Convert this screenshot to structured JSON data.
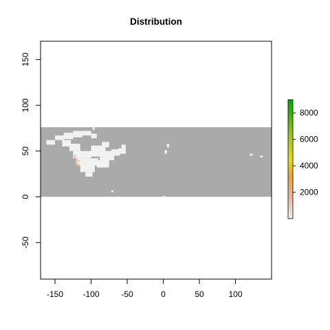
{
  "chart_data": {
    "type": "heatmap",
    "title": "Distribution",
    "xlabel": "",
    "ylabel": "",
    "xlim": [
      -170,
      150
    ],
    "ylim": [
      -90,
      170
    ],
    "x_ticks": [
      {
        "value": -150,
        "label": "-150"
      },
      {
        "value": -100,
        "label": "-100"
      },
      {
        "value": -50,
        "label": "-50"
      },
      {
        "value": 0,
        "label": "0"
      },
      {
        "value": 50,
        "label": "50"
      },
      {
        "value": 100,
        "label": "100"
      }
    ],
    "y_ticks": [
      {
        "value": -50,
        "label": "-50"
      },
      {
        "value": 0,
        "label": "0"
      },
      {
        "value": 50,
        "label": "50"
      },
      {
        "value": 100,
        "label": "100"
      },
      {
        "value": 150,
        "label": "150"
      }
    ],
    "raster_extent": {
      "x": [
        -170,
        150
      ],
      "y": [
        0,
        76
      ]
    },
    "background_value_color": "#aaaaaa",
    "presence_cells": [
      {
        "x": [
          -150,
          -138
        ],
        "y": [
          62,
          67
        ]
      },
      {
        "x": [
          -162,
          -150
        ],
        "y": [
          57,
          62
        ]
      },
      {
        "x": [
          -138,
          -125
        ],
        "y": [
          63,
          70
        ]
      },
      {
        "x": [
          -125,
          -112
        ],
        "y": [
          65,
          72
        ]
      },
      {
        "x": [
          -112,
          -100
        ],
        "y": [
          67,
          72
        ]
      },
      {
        "x": [
          -100,
          -92
        ],
        "y": [
          64,
          69
        ]
      },
      {
        "x": [
          -140,
          -128
        ],
        "y": [
          55,
          62
        ]
      },
      {
        "x": [
          -130,
          -115
        ],
        "y": [
          50,
          58
        ]
      },
      {
        "x": [
          -125,
          -100
        ],
        "y": [
          42,
          50
        ]
      },
      {
        "x": [
          -120,
          -90
        ],
        "y": [
          34,
          42
        ]
      },
      {
        "x": [
          -115,
          -95
        ],
        "y": [
          27,
          34
        ]
      },
      {
        "x": [
          -108,
          -98
        ],
        "y": [
          22,
          27
        ]
      },
      {
        "x": [
          -100,
          -80
        ],
        "y": [
          44,
          56
        ]
      },
      {
        "x": [
          -88,
          -68
        ],
        "y": [
          40,
          50
        ]
      },
      {
        "x": [
          -92,
          -75
        ],
        "y": [
          32,
          40
        ]
      },
      {
        "x": [
          -85,
          -75
        ],
        "y": [
          54,
          60
        ]
      },
      {
        "x": [
          -72,
          -60
        ],
        "y": [
          45,
          52
        ]
      },
      {
        "x": [
          -62,
          -52
        ],
        "y": [
          47,
          53
        ]
      },
      {
        "x": [
          -58,
          -52
        ],
        "y": [
          53,
          57
        ]
      },
      {
        "x": [
          -98,
          -95
        ],
        "y": [
          73,
          76
        ]
      },
      {
        "x": [
          5,
          8
        ],
        "y": [
          54,
          58
        ]
      },
      {
        "x": [
          2,
          5
        ],
        "y": [
          47,
          51
        ]
      },
      {
        "x": [
          120,
          124
        ],
        "y": [
          45,
          47
        ]
      },
      {
        "x": [
          134,
          138
        ],
        "y": [
          43,
          45
        ]
      },
      {
        "x": [
          -72,
          -69
        ],
        "y": [
          5,
          7
        ]
      },
      {
        "x": [
          -1,
          2
        ],
        "y": [
          0,
          1
        ]
      }
    ],
    "hotspot_cells": [
      {
        "x": [
          -124,
          -121
        ],
        "y": [
          42,
          46
        ],
        "value": 1200
      },
      {
        "x": [
          -122,
          -119
        ],
        "y": [
          37,
          41
        ],
        "value": 1800
      },
      {
        "x": [
          -119,
          -116
        ],
        "y": [
          33,
          36
        ],
        "value": 2200
      },
      {
        "x": [
          -118,
          -115
        ],
        "y": [
          38,
          40
        ],
        "value": 900
      }
    ],
    "legend": {
      "position": "right",
      "range": [
        0,
        9000
      ],
      "ticks": [
        {
          "value": 2000,
          "label": "2000"
        },
        {
          "value": 4000,
          "label": "4000"
        },
        {
          "value": 6000,
          "label": "6000"
        },
        {
          "value": 8000,
          "label": "8000"
        }
      ],
      "color_stops": [
        {
          "value": 0,
          "color": "#f2f2f2"
        },
        {
          "value": 1500,
          "color": "#ebb8a4"
        },
        {
          "value": 3200,
          "color": "#e6a53a"
        },
        {
          "value": 4500,
          "color": "#e5dc10"
        },
        {
          "value": 6500,
          "color": "#90c020"
        },
        {
          "value": 9000,
          "color": "#00a600"
        }
      ]
    }
  }
}
